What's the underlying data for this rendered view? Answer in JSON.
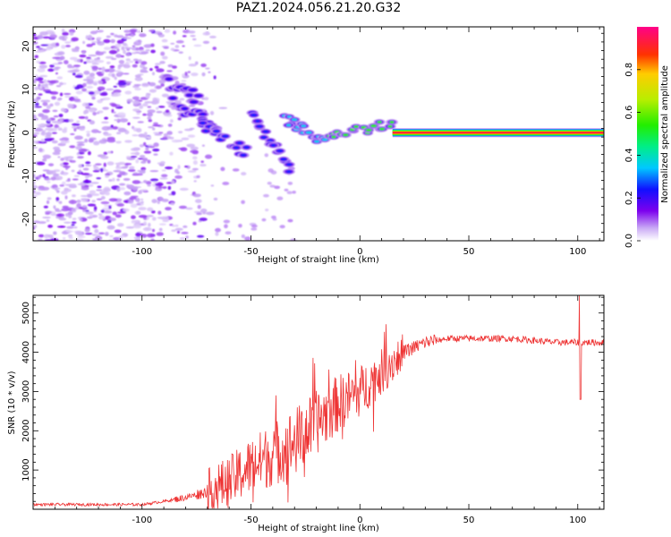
{
  "figure_title": "PAZ1.2024.056.21.20.G32",
  "colorbar": {
    "label": "Normalized spectral amplitude",
    "ticks": [
      "0.0",
      "0.2",
      "0.4",
      "0.6",
      "0.8"
    ]
  },
  "chart_data": [
    {
      "type": "heatmap",
      "xlabel": "Height of straight line (km)",
      "ylabel": "Frequency (Hz)",
      "xlim": [
        -150,
        112
      ],
      "ylim": [
        -25,
        24.5
      ],
      "xticks": [
        -100,
        -50,
        0,
        50,
        100
      ],
      "yticks": [
        -20,
        -10,
        0,
        10,
        20
      ],
      "colorscale": "rainbow (0 white/violet to 1 magenta)",
      "features": [
        {
          "name": "noise",
          "x_range": [
            -150,
            -70
          ],
          "y_range": [
            -25,
            24
          ],
          "amplitude": 0.15
        },
        {
          "name": "signal-segment",
          "x": [
            -90,
            -75
          ],
          "y": [
            12,
            8
          ],
          "amplitude": 0.2
        },
        {
          "name": "signal-segment",
          "x": [
            -85,
            -65
          ],
          "y": [
            7,
            1
          ],
          "amplitude": 0.22
        },
        {
          "name": "signal-segment",
          "x": [
            -72,
            -52
          ],
          "y": [
            2,
            -5
          ],
          "amplitude": 0.25
        },
        {
          "name": "signal-segment",
          "x": [
            -50,
            -32
          ],
          "y": [
            4,
            -8
          ],
          "amplitude": 0.25
        },
        {
          "name": "signal-segment",
          "x": [
            -35,
            -15
          ],
          "y": [
            3,
            -2
          ],
          "amplitude": 0.35
        },
        {
          "name": "signal-segment",
          "x": [
            -15,
            15
          ],
          "y": [
            -1,
            2
          ],
          "amplitude": 0.55
        },
        {
          "name": "constant-tone",
          "x": [
            15,
            112
          ],
          "y": [
            0,
            0
          ],
          "amplitude": 0.95
        }
      ]
    },
    {
      "type": "line",
      "xlabel": "Height of straight line (km)",
      "ylabel": "SNR (10 * v/v)",
      "xlim": [
        -150,
        112
      ],
      "ylim": [
        0,
        5450
      ],
      "xticks": [
        -100,
        -50,
        0,
        50,
        100
      ],
      "yticks": [
        1000,
        2000,
        3000,
        4000,
        5000
      ],
      "series": [
        {
          "color": "#ee3333",
          "x": [
            -150,
            -100,
            -90,
            -80,
            -70,
            -60,
            -50,
            -40,
            -30,
            -20,
            -10,
            0,
            10,
            20,
            30,
            40,
            50,
            60,
            70,
            80,
            90,
            100,
            112
          ],
          "y": [
            120,
            120,
            200,
            300,
            450,
            700,
            1100,
            1400,
            1700,
            2200,
            2700,
            3000,
            3500,
            4000,
            4250,
            4350,
            4350,
            4350,
            4350,
            4300,
            4250,
            4250,
            4250
          ]
        }
      ],
      "annotations": [
        {
          "x": 101,
          "y": 5450,
          "label": "spike"
        },
        {
          "x": 101,
          "y": 2800,
          "label": "dip"
        }
      ]
    }
  ]
}
